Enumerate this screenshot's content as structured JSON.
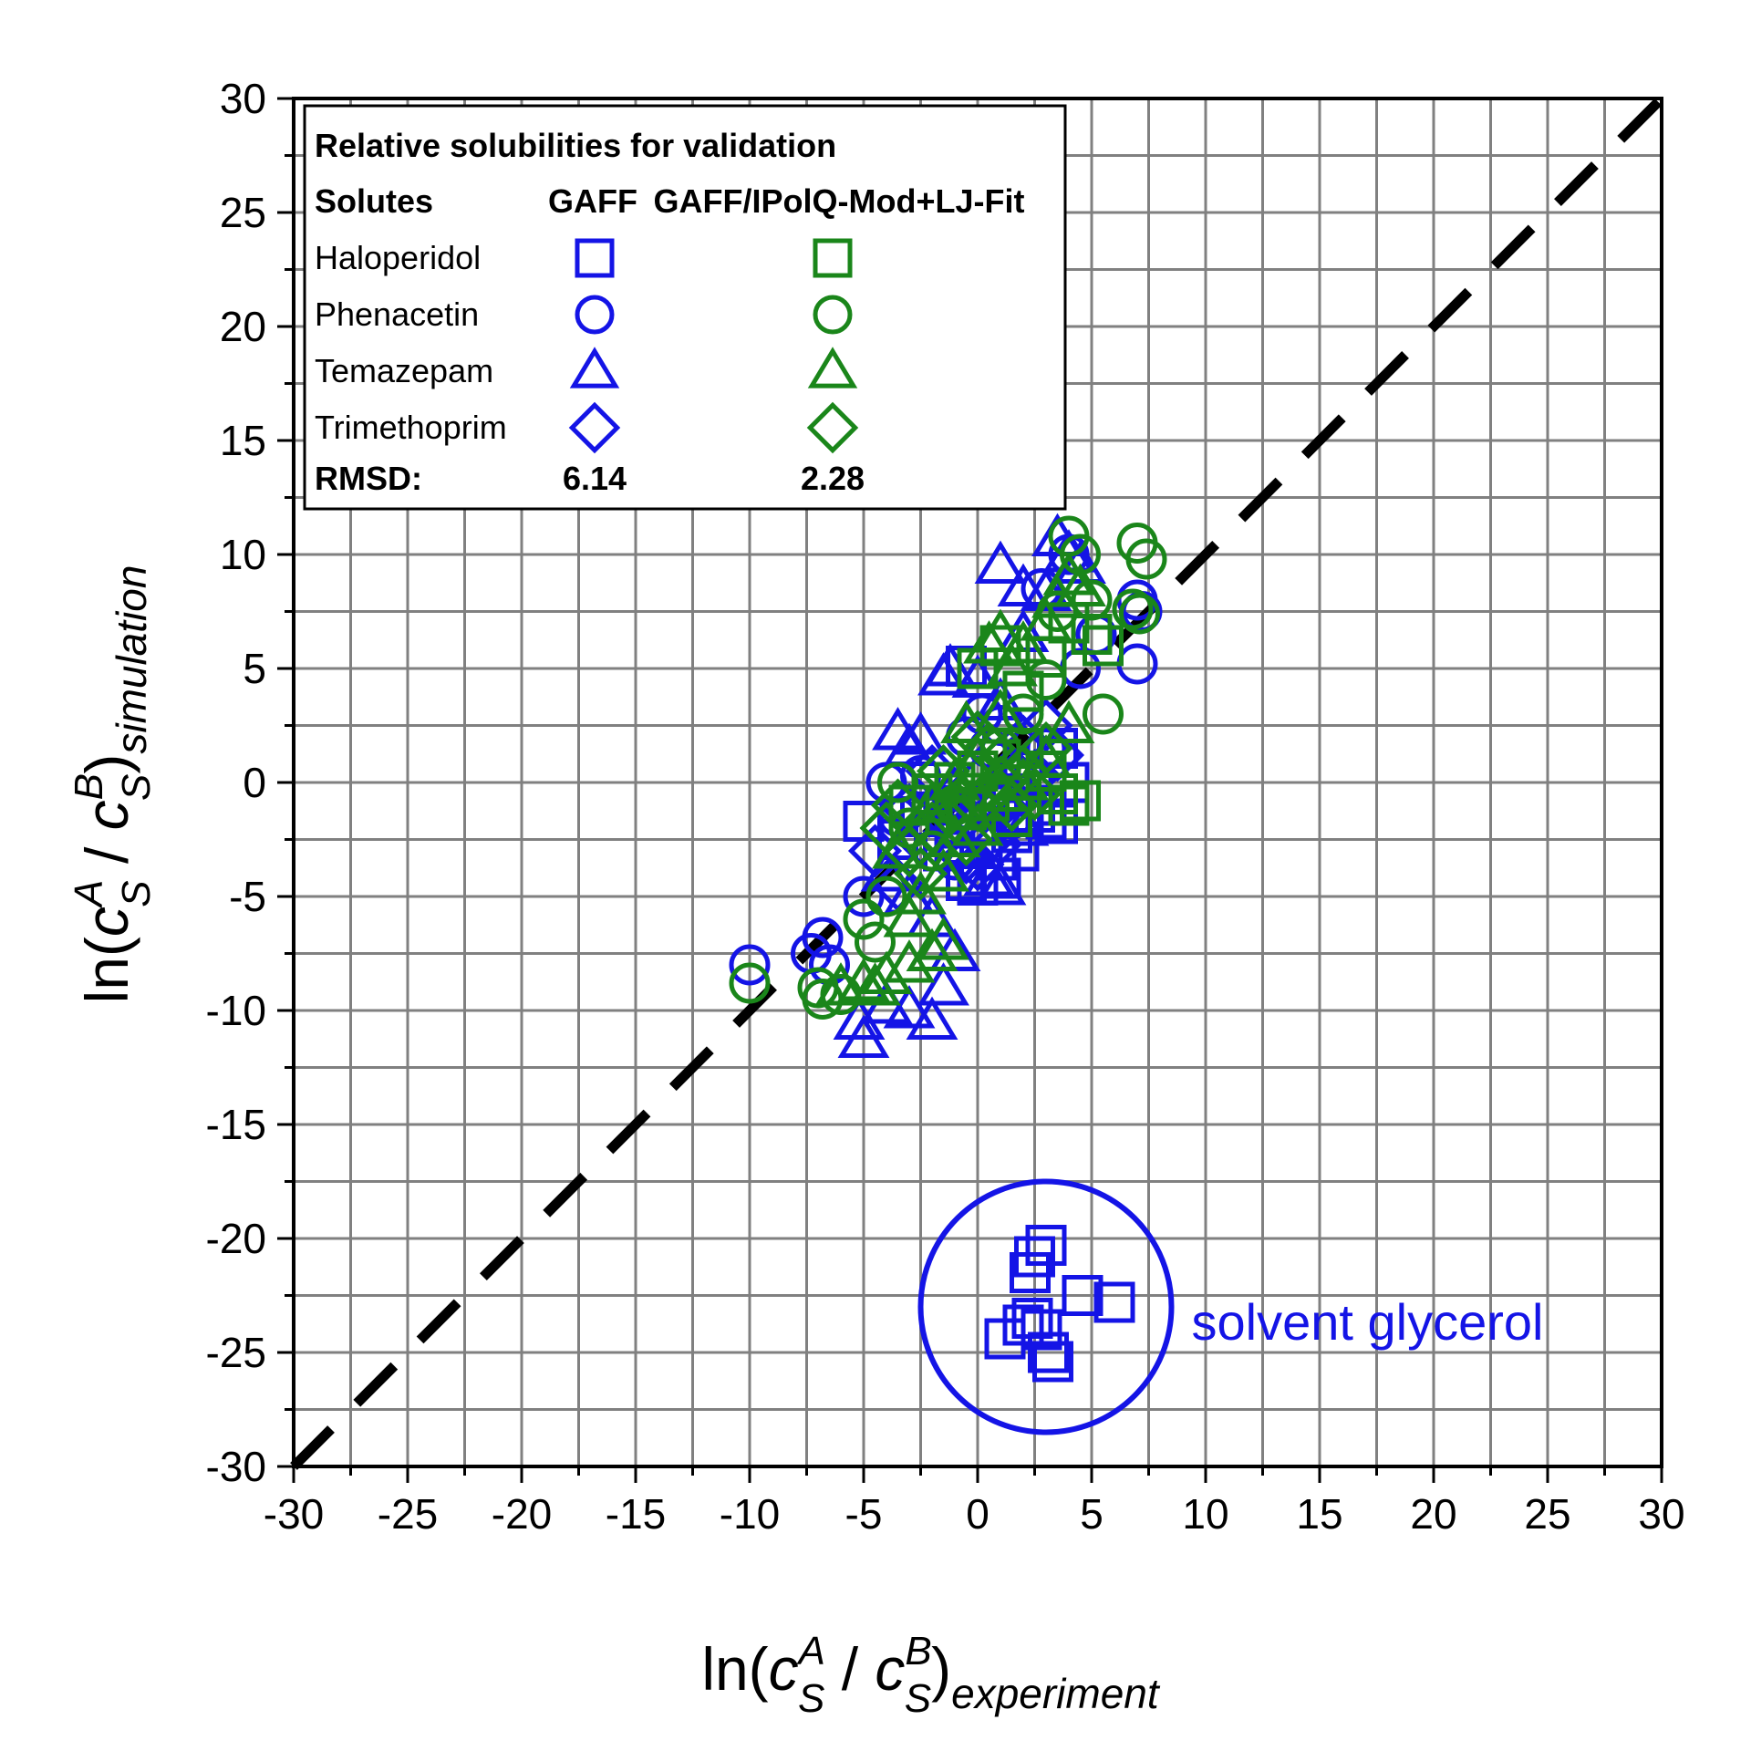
{
  "chart_data": {
    "type": "scatter",
    "xlabel": {
      "prefix": "ln(",
      "c": "c",
      "sup_a": "A",
      "sub_s": "S",
      "slash": " / ",
      "sup_b": "B",
      "close": ")",
      "subscript": "experiment"
    },
    "ylabel": {
      "prefix": "ln(",
      "c": "c",
      "sup_a": "A",
      "sub_s": "S",
      "slash": " / ",
      "sup_b": "B",
      "close": ")",
      "subscript": "simulation"
    },
    "xlim": [
      -30,
      30
    ],
    "ylim": [
      -30,
      30
    ],
    "xticks": [
      "-30",
      "-25",
      "-20",
      "-15",
      "-10",
      "-5",
      "0",
      "5",
      "10",
      "15",
      "20",
      "25",
      "30"
    ],
    "yticks": [
      "30",
      "25",
      "20",
      "15",
      "10",
      "5",
      "0",
      "-5",
      "-10",
      "-15",
      "-20",
      "-25",
      "-30"
    ],
    "grid": true,
    "reference_line": "y = x",
    "legend": {
      "position": "top-left",
      "title": "Relative solubilities for validation",
      "header_solutes": "Solutes",
      "header_gaff": "GAFF",
      "header_fit": "GAFF/IPolQ-Mod+LJ-Fit",
      "rows": [
        {
          "label": "Haloperidol",
          "marker": "square"
        },
        {
          "label": "Phenacetin",
          "marker": "circle"
        },
        {
          "label": "Temazepam",
          "marker": "triangle"
        },
        {
          "label": "Trimethoprim",
          "marker": "diamond"
        }
      ],
      "rmsd_label": "RMSD:",
      "rmsd_gaff": "6.14",
      "rmsd_fit": "2.28"
    },
    "colors": {
      "gaff": "#1414e6",
      "fit": "#1a861a",
      "reference": "#000000",
      "grid": "#808080"
    },
    "annotation": {
      "text": "solvent glycerol",
      "circle_center": [
        3,
        -23
      ],
      "circle_radius_x": 5.5,
      "circle_radius_y": 5.5
    },
    "series": [
      {
        "solute": "Haloperidol",
        "model": "GAFF",
        "marker": "square",
        "color": "gaff",
        "points": [
          [
            -5,
            -1.7
          ],
          [
            -3.5,
            -2.5
          ],
          [
            -2.5,
            -1.5
          ],
          [
            -1.5,
            -3
          ],
          [
            -0.5,
            -4.3
          ],
          [
            0,
            -4.5
          ],
          [
            1,
            -4.2
          ],
          [
            1.5,
            -2.2
          ],
          [
            2,
            -1.5
          ],
          [
            3,
            -1
          ],
          [
            3.5,
            -1.8
          ],
          [
            4,
            0
          ],
          [
            0.5,
            -1
          ],
          [
            -1,
            -2
          ],
          [
            1.5,
            -0.5
          ],
          [
            2.5,
            -1.3
          ],
          [
            3,
            -1.6
          ],
          [
            0.8,
            -3.4
          ],
          [
            -0.5,
            5.1
          ],
          [
            3.5,
            1.5
          ],
          [
            1.8,
            -3
          ],
          [
            2.5,
            -20.8
          ],
          [
            2.3,
            -21.5
          ],
          [
            3,
            -20.3
          ],
          [
            4.6,
            -22.5
          ],
          [
            6,
            -22.8
          ],
          [
            2,
            -23.8
          ],
          [
            2.4,
            -23.5
          ],
          [
            1.2,
            -24.4
          ],
          [
            2.8,
            -24
          ],
          [
            3.3,
            -25.4
          ],
          [
            3.1,
            -25
          ]
        ]
      },
      {
        "solute": "Phenacetin",
        "model": "GAFF",
        "marker": "circle",
        "color": "gaff",
        "points": [
          [
            -10,
            -8
          ],
          [
            -6.8,
            -6.8
          ],
          [
            -7.3,
            -7.5
          ],
          [
            -6.5,
            -8
          ],
          [
            -5,
            -5
          ],
          [
            -4,
            0
          ],
          [
            -3.5,
            -1.5
          ],
          [
            -2.5,
            0.3
          ],
          [
            -1.5,
            -1
          ],
          [
            -0.5,
            2
          ],
          [
            0.2,
            3
          ],
          [
            1,
            2.5
          ],
          [
            2,
            0.5
          ],
          [
            3,
            1.5
          ],
          [
            4.5,
            5
          ],
          [
            5.2,
            6.5
          ],
          [
            7,
            5.2
          ],
          [
            7.2,
            7.5
          ],
          [
            7,
            8
          ],
          [
            4,
            10
          ],
          [
            2.8,
            8.5
          ],
          [
            1.5,
            -1.6
          ],
          [
            0.5,
            1.5
          ],
          [
            -1,
            -3.4
          ]
        ]
      },
      {
        "solute": "Temazepam",
        "model": "GAFF",
        "marker": "triangle",
        "color": "gaff",
        "points": [
          [
            -5,
            -11.3
          ],
          [
            -5.2,
            -10.5
          ],
          [
            -4,
            -9.8
          ],
          [
            -3,
            -10
          ],
          [
            -2,
            -10.5
          ],
          [
            -1.5,
            -9
          ],
          [
            -1,
            -7.5
          ],
          [
            -2,
            -6
          ],
          [
            -3,
            -5
          ],
          [
            -4,
            -4
          ],
          [
            -3.5,
            2.2
          ],
          [
            -3,
            1.5
          ],
          [
            -2.5,
            2
          ],
          [
            -1.5,
            4.6
          ],
          [
            -1.2,
            5
          ],
          [
            0,
            4.5
          ],
          [
            1,
            9.5
          ],
          [
            2,
            8.5
          ],
          [
            3.5,
            10.7
          ],
          [
            4,
            10
          ],
          [
            4.5,
            9.5
          ],
          [
            3,
            8.3
          ],
          [
            2,
            6.5
          ],
          [
            1,
            3.5
          ],
          [
            0,
            -1.3
          ],
          [
            1,
            -4.6
          ],
          [
            0.5,
            -4.2
          ],
          [
            -0.5,
            -3
          ],
          [
            2,
            -2
          ],
          [
            -1,
            -1
          ]
        ]
      },
      {
        "solute": "Trimethoprim",
        "model": "GAFF",
        "marker": "diamond",
        "color": "gaff",
        "points": [
          [
            -4.5,
            -3
          ],
          [
            -3.5,
            -4.5
          ],
          [
            -2.5,
            -2.5
          ],
          [
            -1.5,
            -1.5
          ],
          [
            -0.5,
            -3.3
          ],
          [
            0,
            -3.6
          ],
          [
            0.5,
            -2.5
          ],
          [
            1,
            -1
          ],
          [
            1.5,
            0.5
          ],
          [
            2,
            1.8
          ],
          [
            3,
            2.5
          ],
          [
            -2,
            0.5
          ],
          [
            -1,
            -0.5
          ],
          [
            0,
            0
          ],
          [
            2.5,
            0.3
          ],
          [
            3.5,
            1.2
          ],
          [
            -3,
            -1.2
          ],
          [
            0.8,
            -2.7
          ]
        ]
      },
      {
        "solute": "Haloperidol",
        "model": "GAFF/IPolQ-Mod+LJ-Fit",
        "marker": "square",
        "color": "fit",
        "points": [
          [
            -3,
            -1
          ],
          [
            -2,
            -0.5
          ],
          [
            -1,
            0
          ],
          [
            0,
            0.5
          ],
          [
            1,
            1
          ],
          [
            2,
            1.5
          ],
          [
            3,
            0.5
          ],
          [
            3.5,
            -0.5
          ],
          [
            4,
            -1
          ],
          [
            4.5,
            -0.8
          ],
          [
            1.5,
            -1.5
          ],
          [
            0.5,
            -0.8
          ],
          [
            -0.5,
            -1.2
          ],
          [
            5,
            6.5
          ],
          [
            5.5,
            6
          ],
          [
            4,
            7
          ],
          [
            3,
            5.5
          ],
          [
            2,
            4
          ],
          [
            1,
            6
          ],
          [
            0,
            5
          ]
        ]
      },
      {
        "solute": "Phenacetin",
        "model": "GAFF/IPolQ-Mod+LJ-Fit",
        "marker": "circle",
        "color": "fit",
        "points": [
          [
            -10,
            -8.8
          ],
          [
            -7,
            -9
          ],
          [
            -6.8,
            -9.5
          ],
          [
            -6,
            -9.3
          ],
          [
            -5,
            -6
          ],
          [
            -4.5,
            -7
          ],
          [
            -4,
            -5
          ],
          [
            -3.5,
            0
          ],
          [
            -3,
            -2
          ],
          [
            -2,
            -3
          ],
          [
            -1,
            -1
          ],
          [
            0,
            0.5
          ],
          [
            1,
            1.5
          ],
          [
            2,
            3
          ],
          [
            3,
            4.5
          ],
          [
            4,
            10.8
          ],
          [
            4.5,
            10
          ],
          [
            5.5,
            3
          ],
          [
            7,
            10.5
          ],
          [
            7.4,
            9.8
          ],
          [
            7.1,
            7.4
          ],
          [
            6.8,
            7.6
          ],
          [
            5,
            8
          ],
          [
            3.5,
            7.5
          ]
        ]
      },
      {
        "solute": "Temazepam",
        "model": "GAFF/IPolQ-Mod+LJ-Fit",
        "marker": "triangle",
        "color": "fit",
        "points": [
          [
            -5,
            -8.8
          ],
          [
            -6,
            -9
          ],
          [
            -4.5,
            -9
          ],
          [
            -4,
            -8.5
          ],
          [
            -3,
            -8
          ],
          [
            -2,
            -7.5
          ],
          [
            -1.5,
            -7
          ],
          [
            -2.5,
            -5
          ],
          [
            -3.5,
            -3
          ],
          [
            -2,
            -1
          ],
          [
            -1,
            0
          ],
          [
            0,
            1
          ],
          [
            1,
            3
          ],
          [
            1.5,
            5
          ],
          [
            2,
            6
          ],
          [
            3,
            7
          ],
          [
            3.5,
            8
          ],
          [
            4,
            9
          ],
          [
            4.5,
            8.5
          ],
          [
            1,
            6.5
          ],
          [
            0.5,
            6
          ],
          [
            -0.5,
            2.5
          ],
          [
            -3,
            -6
          ],
          [
            -1.5,
            -4
          ],
          [
            0,
            -2
          ],
          [
            2,
            0
          ],
          [
            3,
            1
          ],
          [
            4,
            2.5
          ],
          [
            1,
            -0.5
          ],
          [
            -1,
            -2.5
          ]
        ]
      },
      {
        "solute": "Trimethoprim",
        "model": "GAFF/IPolQ-Mod+LJ-Fit",
        "marker": "diamond",
        "color": "fit",
        "points": [
          [
            -4,
            -2
          ],
          [
            -3,
            -3
          ],
          [
            -2,
            -2
          ],
          [
            -1,
            -1.5
          ],
          [
            0,
            -1
          ],
          [
            1,
            0
          ],
          [
            2,
            0.5
          ],
          [
            3,
            1.5
          ],
          [
            -2.5,
            -4
          ],
          [
            -1.5,
            0.5
          ],
          [
            0.5,
            1.5
          ],
          [
            1.5,
            -1
          ],
          [
            2.5,
            -0.5
          ],
          [
            -3.5,
            -1
          ],
          [
            0,
            2
          ],
          [
            -0.5,
            -2.5
          ]
        ]
      }
    ]
  }
}
